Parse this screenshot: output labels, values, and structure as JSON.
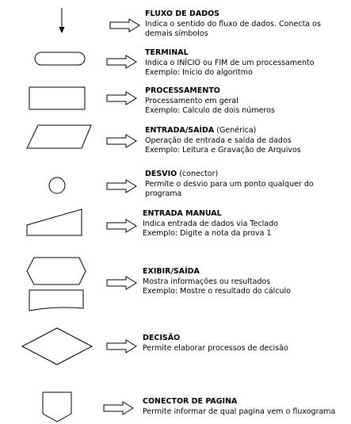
{
  "colors": {
    "stroke": "#000000",
    "fill": "#ffffff",
    "text": "#000000"
  },
  "entries": [
    {
      "symbol": "flow-arrow-icon",
      "title": "FLUXO DE DADOS",
      "title_suffix": "",
      "lines": [
        "Indica o sentido do fluxo de dados. Conecta os",
        "demais símbolos"
      ]
    },
    {
      "symbol": "terminal-icon",
      "title": "TERMINAL",
      "title_suffix": "",
      "lines": [
        "Indica o INÍCIO ou FIM de um processamento",
        "Exemplo: Início do algoritmo"
      ]
    },
    {
      "symbol": "process-icon",
      "title": "PROCESSAMENTO",
      "title_suffix": "",
      "lines": [
        "Processamento em geral",
        "Exemplo: Calculo de dois números"
      ]
    },
    {
      "symbol": "input-output-icon",
      "title": "ENTRADA/SAÍDA",
      "title_suffix": " (Genérica)",
      "lines": [
        "Operação de entrada e saída de dados",
        "Exemplo: Leitura e Gravação de Arquivos"
      ]
    },
    {
      "symbol": "connector-icon",
      "title": "DESVIO",
      "title_suffix": " (conector)",
      "lines": [
        "Permite o desvio para um ponto qualquer do",
        "programa"
      ]
    },
    {
      "symbol": "manual-input-icon",
      "title": "ENTRADA MANUAL",
      "title_suffix": "",
      "lines": [
        "Indica entrada de dados via Teclado",
        "Exemplo: Digite a nota da prova 1"
      ]
    },
    {
      "symbol": "display-output-icon",
      "title": "EXIBIR/SAÍDA",
      "title_suffix": "",
      "lines": [
        "Mostra informações ou resultados",
        "Exemplo: Mostre o resultado do cálculo"
      ]
    },
    {
      "symbol": "decision-icon",
      "title": "DECISÃO",
      "title_suffix": "",
      "lines": [
        "Permite elaborar processos de decisão"
      ]
    },
    {
      "symbol": "page-connector-icon",
      "title": "CONECTOR DE PAGINA",
      "title_suffix": "",
      "lines": [
        "Permite informar de qual pagina vem o fluxograma"
      ]
    }
  ]
}
